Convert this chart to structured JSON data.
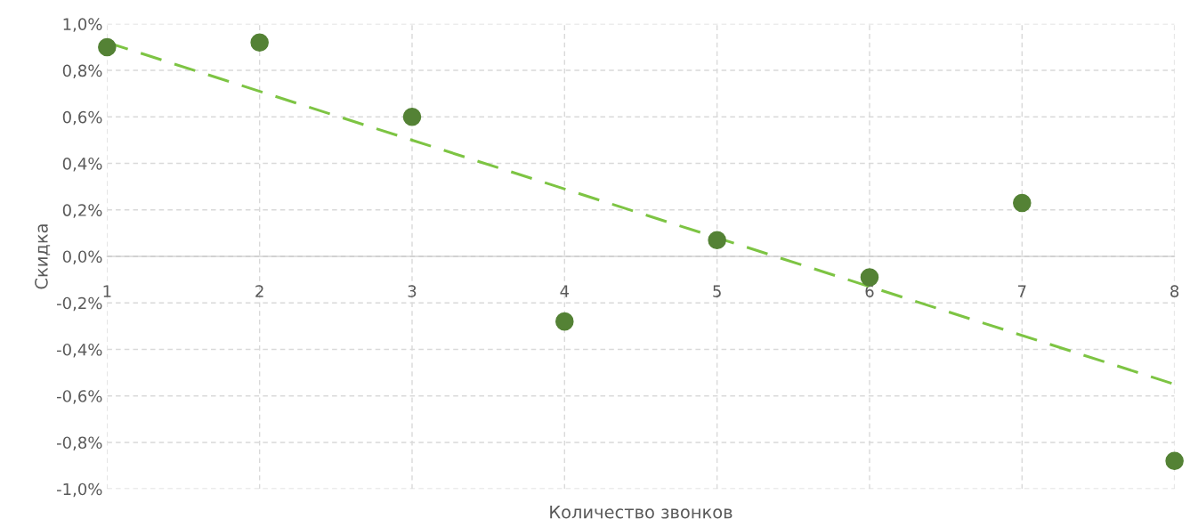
{
  "chart_data": {
    "type": "scatter",
    "xlabel": "Количество звонков",
    "ylabel": "Скидка",
    "x": [
      1,
      2,
      3,
      4,
      5,
      6,
      7,
      8
    ],
    "series": [
      {
        "color": "#548235",
        "values": [
          0.9,
          0.92,
          0.6,
          -0.28,
          0.07,
          -0.09,
          0.23,
          -0.88
        ],
        "marker": "circle"
      },
      {
        "type": "line",
        "color": "#7dc443",
        "x": [
          1,
          8
        ],
        "values": [
          0.92,
          -0.55
        ],
        "line_style": "dashed",
        "marker": "none"
      }
    ],
    "xlim": [
      1,
      8
    ],
    "xticks": [
      1,
      2,
      3,
      4,
      5,
      6,
      7,
      8
    ],
    "ylim": [
      -1.0,
      1.0
    ],
    "yticks": [
      {
        "value": -1.0,
        "label": "-1,0%"
      },
      {
        "value": -0.8,
        "label": "-0,8%"
      },
      {
        "value": -0.6,
        "label": "-0,6%"
      },
      {
        "value": -0.4,
        "label": "-0,4%"
      },
      {
        "value": -0.2,
        "label": "-0,2%"
      },
      {
        "value": 0.0,
        "label": "0,0%"
      },
      {
        "value": 0.2,
        "label": "0,2%"
      },
      {
        "value": 0.4,
        "label": "0,4%"
      },
      {
        "value": 0.6,
        "label": "0,6%"
      },
      {
        "value": 0.8,
        "label": "0,8%"
      },
      {
        "value": 1.0,
        "label": "1,0%"
      }
    ],
    "grid": true,
    "legend": false
  }
}
